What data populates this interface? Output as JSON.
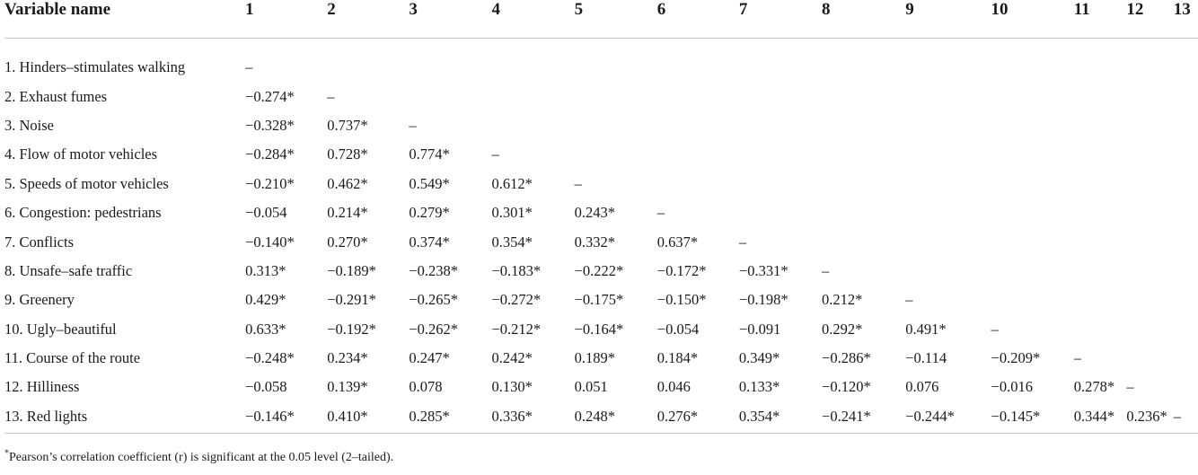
{
  "table": {
    "headers": [
      "Variable name",
      "1",
      "2",
      "3",
      "4",
      "5",
      "6",
      "7",
      "8",
      "9",
      "10",
      "11",
      "12",
      "13"
    ],
    "rows": [
      {
        "name": "1. Hinders–stimulates walking",
        "values": [
          "–"
        ]
      },
      {
        "name": "2. Exhaust fumes",
        "values": [
          "−0.274*",
          "–"
        ]
      },
      {
        "name": "3. Noise",
        "values": [
          "−0.328*",
          "0.737*",
          "–"
        ]
      },
      {
        "name": "4. Flow of motor vehicles",
        "values": [
          "−0.284*",
          "0.728*",
          "0.774*",
          "–"
        ]
      },
      {
        "name": "5. Speeds of motor vehicles",
        "values": [
          "−0.210*",
          "0.462*",
          "0.549*",
          "0.612*",
          "–"
        ]
      },
      {
        "name": "6. Congestion: pedestrians",
        "values": [
          "−0.054",
          "0.214*",
          "0.279*",
          "0.301*",
          "0.243*",
          "–"
        ]
      },
      {
        "name": "7. Conflicts",
        "values": [
          "−0.140*",
          "0.270*",
          "0.374*",
          "0.354*",
          "0.332*",
          "0.637*",
          "–"
        ]
      },
      {
        "name": "8. Unsafe–safe traffic",
        "values": [
          "0.313*",
          "−0.189*",
          "−0.238*",
          "−0.183*",
          "−0.222*",
          "−0.172*",
          "−0.331*",
          "–"
        ]
      },
      {
        "name": "9. Greenery",
        "values": [
          "0.429*",
          "−0.291*",
          "−0.265*",
          "−0.272*",
          "−0.175*",
          "−0.150*",
          "−0.198*",
          "0.212*",
          "–"
        ]
      },
      {
        "name": "10. Ugly–beautiful",
        "values": [
          "0.633*",
          "−0.192*",
          "−0.262*",
          "−0.212*",
          "−0.164*",
          "−0.054",
          "−0.091",
          "0.292*",
          "0.491*",
          "–"
        ]
      },
      {
        "name": "11. Course of the route",
        "values": [
          "−0.248*",
          "0.234*",
          "0.247*",
          "0.242*",
          "0.189*",
          "0.184*",
          "0.349*",
          "−0.286*",
          "−0.114",
          "−0.209*",
          "–"
        ]
      },
      {
        "name": "12. Hilliness",
        "values": [
          "−0.058",
          "0.139*",
          "0.078",
          "0.130*",
          "0.051",
          "0.046",
          "0.133*",
          "−0.120*",
          "0.076",
          "−0.016",
          "0.278*",
          "–"
        ]
      },
      {
        "name": "13. Red lights",
        "values": [
          "−0.146*",
          "0.410*",
          "0.285*",
          "0.336*",
          "0.248*",
          "0.276*",
          "0.354*",
          "−0.241*",
          "−0.244*",
          "−0.145*",
          "0.344*",
          "0.236*",
          "–"
        ]
      }
    ]
  },
  "footnote": {
    "mark": "*",
    "text": "Pearson’s correlation coefficient (r) is significant at the 0.05 level (2–tailed)."
  }
}
